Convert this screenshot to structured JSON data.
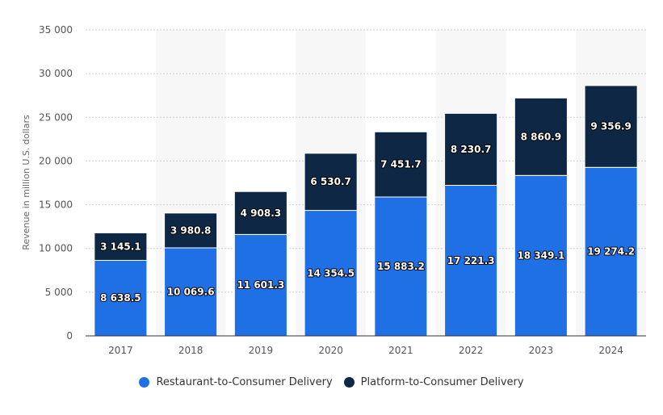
{
  "chart_data": {
    "type": "bar",
    "stacked": true,
    "categories": [
      "2017",
      "2018",
      "2019",
      "2020",
      "2021",
      "2022",
      "2023",
      "2024"
    ],
    "series": [
      {
        "name": "Restaurant-to-Consumer Delivery",
        "color": "#1f6fe5",
        "values": [
          8638.5,
          10069.6,
          11601.3,
          14354.5,
          15883.2,
          17221.3,
          18349.1,
          19274.2
        ],
        "labels": [
          "8 638.5",
          "10 069.6",
          "11 601.3",
          "14 354.5",
          "15 883.2",
          "17 221.3",
          "18 349.1",
          "19 274.2"
        ]
      },
      {
        "name": "Platform-to-Consumer Delivery",
        "color": "#0d2744",
        "values": [
          3145.1,
          3980.8,
          4908.3,
          6530.7,
          7451.7,
          8230.7,
          8860.9,
          9356.9
        ],
        "labels": [
          "3 145.1",
          "3 980.8",
          "4 908.3",
          "6 530.7",
          "7 451.7",
          "8 230.7",
          "8 860.9",
          "9 356.9"
        ]
      }
    ],
    "ylabel": "Revenue in million U.S. dollars",
    "ylim": [
      0,
      35000
    ],
    "yticks": [
      0,
      5000,
      10000,
      15000,
      20000,
      25000,
      30000,
      35000
    ],
    "ytick_labels": [
      "0",
      "5 000",
      "10 000",
      "15 000",
      "20 000",
      "25 000",
      "30 000",
      "35 000"
    ],
    "grid": true,
    "legend_position": "bottom-center"
  }
}
